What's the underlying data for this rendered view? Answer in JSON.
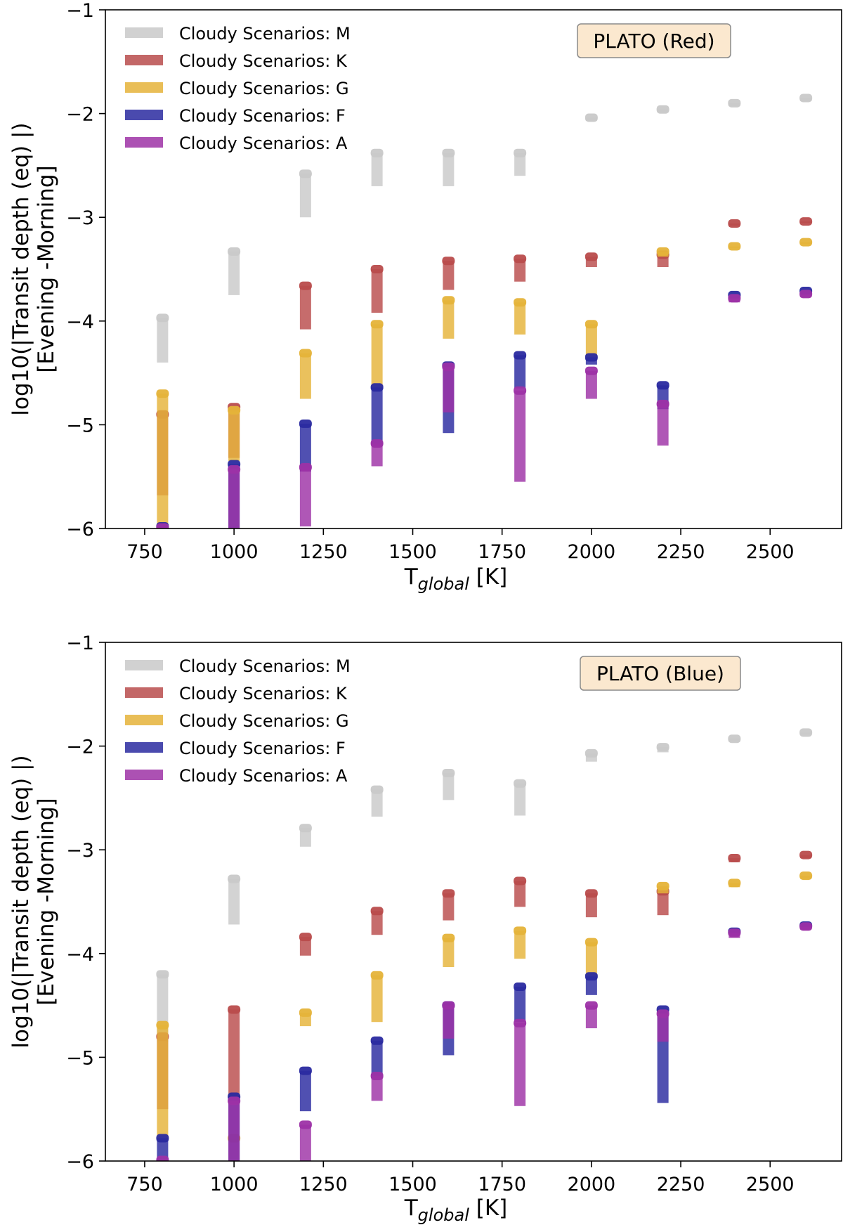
{
  "chart_data": [
    {
      "type": "range",
      "title_box": "PLATO (Red)",
      "xlabel_main": "T",
      "xlabel_sub": "global",
      "xlabel_unit": " [K]",
      "ylabel_line1": "log10(|Transit depth (eq) |)",
      "ylabel_line2": "[Evening -Morning]",
      "xlim": [
        640,
        2700
      ],
      "ylim": [
        -6,
        -1
      ],
      "xticks": [
        750,
        1000,
        1250,
        1500,
        1750,
        2000,
        2250,
        2500
      ],
      "yticks": [
        -6,
        -5,
        -4,
        -3,
        -2,
        -1
      ],
      "legend_position": "upper-left",
      "series": [
        {
          "name": "Cloudy Scenarios: M",
          "color": "#c9c9c9",
          "ranges": [
            [
              800,
              -4.4,
              -3.97
            ],
            [
              1000,
              -3.75,
              -3.33
            ],
            [
              1200,
              -3.0,
              -2.58
            ],
            [
              1400,
              -2.7,
              -2.38
            ],
            [
              1600,
              -2.7,
              -2.38
            ],
            [
              1800,
              -2.6,
              -2.38
            ],
            [
              2000,
              -2.07,
              -2.04
            ],
            [
              2200,
              -1.99,
              -1.96
            ],
            [
              2400,
              -1.93,
              -1.9
            ],
            [
              2600,
              -1.88,
              -1.85
            ]
          ]
        },
        {
          "name": "Cloudy Scenarios: K",
          "color": "#b94c4c",
          "ranges": [
            [
              800,
              -5.68,
              -4.9
            ],
            [
              1000,
              -5.32,
              -4.83
            ],
            [
              1200,
              -4.08,
              -3.66
            ],
            [
              1400,
              -3.92,
              -3.5
            ],
            [
              1600,
              -3.7,
              -3.42
            ],
            [
              1800,
              -3.62,
              -3.4
            ],
            [
              2000,
              -3.48,
              -3.38
            ],
            [
              2200,
              -3.48,
              -3.36
            ],
            [
              2400,
              -3.08,
              -3.06
            ],
            [
              2600,
              -3.05,
              -3.04
            ]
          ]
        },
        {
          "name": "Cloudy Scenarios: G",
          "color": "#e5b339",
          "ranges": [
            [
              800,
              -6.0,
              -4.7
            ],
            [
              1000,
              -5.35,
              -4.86
            ],
            [
              1200,
              -4.75,
              -4.31
            ],
            [
              1400,
              -4.66,
              -4.03
            ],
            [
              1600,
              -4.17,
              -3.8
            ],
            [
              1800,
              -4.13,
              -3.82
            ],
            [
              2000,
              -4.38,
              -4.03
            ],
            [
              2200,
              -3.38,
              -3.33
            ],
            [
              2400,
              -3.3,
              -3.28
            ],
            [
              2600,
              -3.26,
              -3.24
            ]
          ]
        },
        {
          "name": "Cloudy Scenarios: F",
          "color": "#2a2aa0",
          "ranges": [
            [
              800,
              -6.0,
              -5.98
            ],
            [
              1000,
              -6.0,
              -5.38
            ],
            [
              1200,
              -5.45,
              -4.99
            ],
            [
              1400,
              -5.2,
              -4.64
            ],
            [
              1600,
              -5.08,
              -4.43
            ],
            [
              1800,
              -4.65,
              -4.33
            ],
            [
              2000,
              -4.42,
              -4.35
            ],
            [
              2200,
              -4.85,
              -4.62
            ],
            [
              2400,
              -3.78,
              -3.75
            ],
            [
              2600,
              -3.74,
              -3.71
            ]
          ]
        },
        {
          "name": "Cloudy Scenarios: A",
          "color": "#9d32a6",
          "ranges": [
            [
              800,
              -6.0,
              -5.99
            ],
            [
              1000,
              -6.0,
              -5.43
            ],
            [
              1200,
              -5.98,
              -5.41
            ],
            [
              1400,
              -5.4,
              -5.18
            ],
            [
              1600,
              -4.88,
              -4.44
            ],
            [
              1800,
              -5.55,
              -4.67
            ],
            [
              2000,
              -4.75,
              -4.48
            ],
            [
              2200,
              -5.2,
              -4.8
            ],
            [
              2400,
              -3.82,
              -3.78
            ],
            [
              2600,
              -3.77,
              -3.74
            ]
          ]
        }
      ]
    },
    {
      "type": "range",
      "title_box": "PLATO (Blue)",
      "xlabel_main": "T",
      "xlabel_sub": "global",
      "xlabel_unit": " [K]",
      "ylabel_line1": "log10(|Transit depth (eq) |)",
      "ylabel_line2": "[Evening -Morning]",
      "xlim": [
        640,
        2700
      ],
      "ylim": [
        -6,
        -1
      ],
      "xticks": [
        750,
        1000,
        1250,
        1500,
        1750,
        2000,
        2250,
        2500
      ],
      "yticks": [
        -6,
        -5,
        -4,
        -3,
        -2,
        -1
      ],
      "legend_position": "upper-left",
      "series": [
        {
          "name": "Cloudy Scenarios: M",
          "color": "#c9c9c9",
          "ranges": [
            [
              800,
              -4.85,
              -4.2
            ],
            [
              1000,
              -3.72,
              -3.28
            ],
            [
              1200,
              -2.97,
              -2.79
            ],
            [
              1400,
              -2.68,
              -2.42
            ],
            [
              1600,
              -2.52,
              -2.26
            ],
            [
              1800,
              -2.67,
              -2.36
            ],
            [
              2000,
              -2.15,
              -2.07
            ],
            [
              2200,
              -2.06,
              -2.01
            ],
            [
              2400,
              -1.96,
              -1.93
            ],
            [
              2600,
              -1.89,
              -1.87
            ]
          ]
        },
        {
          "name": "Cloudy Scenarios: K",
          "color": "#b94c4c",
          "ranges": [
            [
              800,
              -5.5,
              -4.8
            ],
            [
              1000,
              -5.45,
              -4.54
            ],
            [
              1200,
              -4.02,
              -3.84
            ],
            [
              1400,
              -3.82,
              -3.59
            ],
            [
              1600,
              -3.68,
              -3.42
            ],
            [
              1800,
              -3.55,
              -3.3
            ],
            [
              2000,
              -3.65,
              -3.42
            ],
            [
              2200,
              -3.63,
              -3.4
            ],
            [
              2400,
              -3.12,
              -3.08
            ],
            [
              2600,
              -3.08,
              -3.05
            ]
          ]
        },
        {
          "name": "Cloudy Scenarios: G",
          "color": "#e5b339",
          "ranges": [
            [
              800,
              -5.8,
              -4.69
            ],
            [
              1000,
              -5.8,
              -5.78
            ],
            [
              1200,
              -4.7,
              -4.57
            ],
            [
              1400,
              -4.66,
              -4.21
            ],
            [
              1600,
              -4.13,
              -3.85
            ],
            [
              1800,
              -4.05,
              -3.78
            ],
            [
              2000,
              -4.22,
              -3.89
            ],
            [
              2200,
              -3.42,
              -3.35
            ],
            [
              2400,
              -3.36,
              -3.32
            ],
            [
              2600,
              -3.28,
              -3.25
            ]
          ]
        },
        {
          "name": "Cloudy Scenarios: F",
          "color": "#2a2aa0",
          "ranges": [
            [
              800,
              -6.0,
              -5.78
            ],
            [
              1000,
              -6.0,
              -5.38
            ],
            [
              1200,
              -5.52,
              -5.13
            ],
            [
              1400,
              -5.18,
              -4.84
            ],
            [
              1600,
              -4.98,
              -4.5
            ],
            [
              1800,
              -4.66,
              -4.32
            ],
            [
              2000,
              -4.4,
              -4.22
            ],
            [
              2200,
              -5.44,
              -4.54
            ],
            [
              2400,
              -3.82,
              -3.79
            ],
            [
              2600,
              -3.76,
              -3.73
            ]
          ]
        },
        {
          "name": "Cloudy Scenarios: A",
          "color": "#9d32a6",
          "ranges": [
            [
              800,
              -6.0,
              -5.99
            ],
            [
              1000,
              -6.0,
              -5.42
            ],
            [
              1200,
              -6.0,
              -5.65
            ],
            [
              1400,
              -5.42,
              -5.18
            ],
            [
              1600,
              -4.82,
              -4.5
            ],
            [
              1800,
              -5.47,
              -4.67
            ],
            [
              2000,
              -4.72,
              -4.5
            ],
            [
              2200,
              -4.85,
              -4.58
            ],
            [
              2400,
              -3.85,
              -3.8
            ],
            [
              2600,
              -3.77,
              -3.74
            ]
          ]
        }
      ]
    }
  ]
}
